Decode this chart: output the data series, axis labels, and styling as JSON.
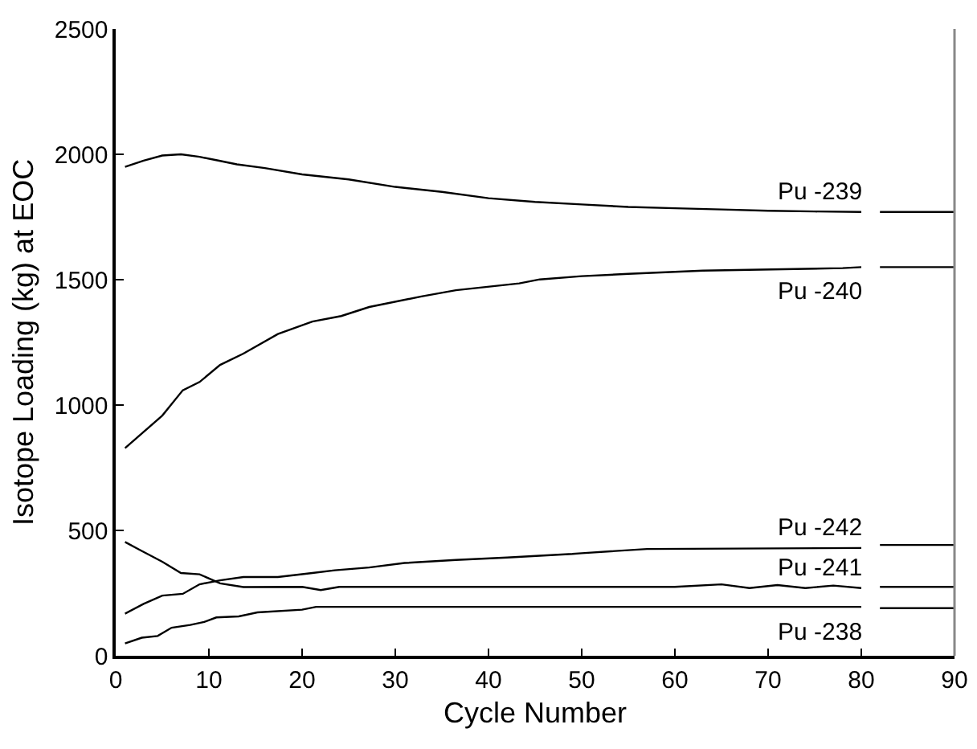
{
  "chart_data": {
    "type": "line",
    "xlabel": "Cycle Number",
    "ylabel": "Isotope Loading (kg) at EOC",
    "xlim": [
      0,
      90
    ],
    "xticks": [
      0,
      10,
      20,
      30,
      40,
      50,
      60,
      70,
      80,
      90
    ],
    "ylim": [
      0,
      2500
    ],
    "yticks": [
      0,
      500,
      1000,
      1500,
      2000,
      2500
    ],
    "grid": false,
    "marker": "none",
    "line_style": "solid",
    "series": [
      {
        "name": "Pu -239",
        "color": "#000000",
        "x": [
          1,
          3,
          5,
          7,
          9,
          11,
          13,
          16,
          20,
          25,
          30,
          35,
          40,
          45,
          50,
          55,
          60,
          65,
          70,
          75,
          80,
          null,
          82,
          90
        ],
        "values": [
          1950,
          1975,
          1995,
          2000,
          1990,
          1975,
          1960,
          1945,
          1920,
          1900,
          1870,
          1850,
          1825,
          1810,
          1800,
          1790,
          1785,
          1780,
          1775,
          1772,
          1770,
          null,
          1770,
          1770
        ]
      },
      {
        "name": "Pu -240",
        "color": "#000000",
        "x": [
          1,
          5,
          7.2,
          9,
          11.2,
          13.7,
          17.4,
          21.1,
          24.2,
          27.2,
          32.8,
          36.5,
          43.3,
          45.5,
          50,
          55,
          63,
          78,
          80,
          null,
          82,
          90
        ],
        "values": [
          828,
          958,
          1059,
          1092,
          1160,
          1205,
          1283,
          1333,
          1355,
          1391,
          1433,
          1458,
          1485,
          1501,
          1514,
          1523,
          1536,
          1546,
          1550,
          null,
          1550,
          1550
        ]
      },
      {
        "name": "Pu -242",
        "color": "#000000",
        "x": [
          1,
          3,
          5,
          7.2,
          9,
          11.2,
          13.7,
          17.4,
          21.1,
          23.5,
          27.2,
          31,
          36.5,
          42,
          49,
          50,
          57,
          80,
          null,
          82,
          90
        ],
        "values": [
          168,
          207,
          240,
          247,
          285,
          301,
          314,
          314,
          330,
          341,
          352,
          370,
          382,
          392,
          406,
          409,
          426,
          430,
          null,
          442,
          442
        ]
      },
      {
        "name": "Pu -241",
        "color": "#000000",
        "x": [
          1,
          2.5,
          5,
          7,
          9,
          11.2,
          13.7,
          20,
          22,
          24,
          30,
          60,
          65,
          68,
          71,
          74,
          77,
          80,
          null,
          82,
          90
        ],
        "values": [
          454,
          424,
          375,
          330,
          325,
          289,
          274,
          275,
          262,
          275,
          275,
          275,
          285,
          270,
          282,
          270,
          280,
          270,
          null,
          275,
          275
        ]
      },
      {
        "name": "Pu -238",
        "color": "#000000",
        "x": [
          1,
          2.8,
          4.5,
          6,
          8,
          9.5,
          10.8,
          13.2,
          15.2,
          20,
          21.5,
          80,
          null,
          82,
          90
        ],
        "values": [
          49,
          72,
          79,
          112,
          123,
          135,
          153,
          157,
          173,
          184,
          195,
          195,
          null,
          190,
          190
        ]
      }
    ]
  }
}
